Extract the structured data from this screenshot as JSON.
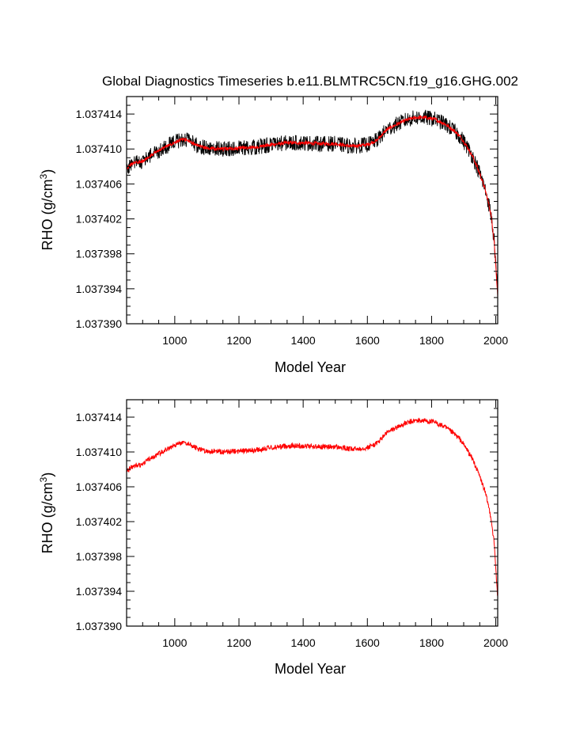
{
  "title": "Global Diagnostics Timeseries b.e11.BLMTRC5CN.f19_g16.GHG.002",
  "chart_data": [
    {
      "type": "line",
      "xlabel": "Model Year",
      "ylabel": "RHO (g/cm",
      "ylabel_sup": "3",
      "ylabel_close": ")",
      "xlim": [
        850,
        2006
      ],
      "ylim": [
        1.03739,
        1.037416
      ],
      "xticks": [
        1000,
        1200,
        1400,
        1600,
        1800,
        2000
      ],
      "xtick_labels": [
        "1000",
        "1200",
        "1400",
        "1600",
        "1800",
        "2000"
      ],
      "yticks": [
        1.03739,
        1.037394,
        1.037398,
        1.037402,
        1.037406,
        1.03741,
        1.037414
      ],
      "ytick_labels": [
        "1.037390",
        "1.037394",
        "1.037398",
        "1.037402",
        "1.037406",
        "1.037410",
        "1.037414"
      ],
      "grid": false,
      "series": [
        {
          "color": "#000000",
          "style": "raw-annual",
          "noise_amplitude": 9e-07
        },
        {
          "color": "#ff0000",
          "style": "smoothed",
          "noise_amplitude": 2e-07
        }
      ],
      "trend": {
        "x": [
          850,
          870,
          900,
          930,
          960,
          990,
          1020,
          1040,
          1070,
          1100,
          1150,
          1200,
          1250,
          1300,
          1350,
          1400,
          1450,
          1500,
          1550,
          1600,
          1630,
          1660,
          1690,
          1720,
          1750,
          1780,
          1810,
          1840,
          1870,
          1890,
          1910,
          1930,
          1950,
          1965,
          1975,
          1985,
          1995,
          2006
        ],
        "y": [
          1.0374078,
          1.0374084,
          1.0374086,
          1.0374094,
          1.03741,
          1.0374106,
          1.0374111,
          1.037411,
          1.0374104,
          1.0374101,
          1.03741,
          1.0374101,
          1.0374102,
          1.0374105,
          1.0374107,
          1.0374107,
          1.0374106,
          1.0374106,
          1.0374103,
          1.0374105,
          1.037411,
          1.0374122,
          1.0374128,
          1.0374133,
          1.0374136,
          1.0374136,
          1.0374134,
          1.0374129,
          1.0374121,
          1.0374114,
          1.0374103,
          1.037409,
          1.0374072,
          1.0374056,
          1.0374042,
          1.0374025,
          1.0373995,
          1.0373932
        ]
      }
    },
    {
      "type": "line",
      "xlabel": "Model Year",
      "ylabel": "RHO (g/cm",
      "ylabel_sup": "3",
      "ylabel_close": ")",
      "xlim": [
        850,
        2006
      ],
      "ylim": [
        1.03739,
        1.037416
      ],
      "xticks": [
        1000,
        1200,
        1400,
        1600,
        1800,
        2000
      ],
      "xtick_labels": [
        "1000",
        "1200",
        "1400",
        "1600",
        "1800",
        "2000"
      ],
      "yticks": [
        1.03739,
        1.037394,
        1.037398,
        1.037402,
        1.037406,
        1.03741,
        1.037414
      ],
      "ytick_labels": [
        "1.037390",
        "1.037394",
        "1.037398",
        "1.037402",
        "1.037406",
        "1.037410",
        "1.037414"
      ],
      "grid": false,
      "series": [
        {
          "color": "#ff0000",
          "style": "smoothed",
          "noise_amplitude": 3e-07
        }
      ],
      "trend": {
        "x": [
          850,
          870,
          900,
          930,
          960,
          990,
          1020,
          1040,
          1070,
          1100,
          1150,
          1200,
          1250,
          1300,
          1350,
          1400,
          1450,
          1500,
          1550,
          1600,
          1630,
          1660,
          1690,
          1720,
          1750,
          1780,
          1810,
          1840,
          1870,
          1890,
          1910,
          1930,
          1950,
          1965,
          1975,
          1985,
          1995,
          2006
        ],
        "y": [
          1.0374078,
          1.0374084,
          1.0374086,
          1.0374094,
          1.03741,
          1.0374106,
          1.0374111,
          1.037411,
          1.0374104,
          1.0374101,
          1.03741,
          1.0374101,
          1.0374102,
          1.0374105,
          1.0374107,
          1.0374107,
          1.0374106,
          1.0374106,
          1.0374103,
          1.0374105,
          1.037411,
          1.0374122,
          1.0374128,
          1.0374133,
          1.0374136,
          1.0374136,
          1.0374134,
          1.0374129,
          1.0374121,
          1.0374114,
          1.0374103,
          1.037409,
          1.0374072,
          1.0374056,
          1.0374042,
          1.0374025,
          1.0373995,
          1.0373932
        ]
      }
    }
  ]
}
